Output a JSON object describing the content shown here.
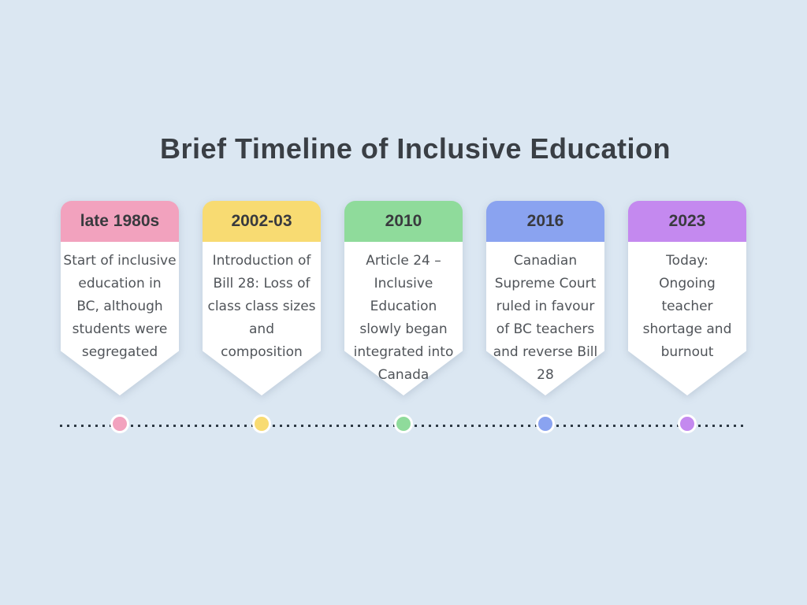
{
  "title": "Brief Timeline of Inclusive Education",
  "colors": {
    "background": "#DBE7F2",
    "card_body": "#FFFFFF",
    "title_text": "#3A3F45",
    "year_text": "#393A3E",
    "body_text": "#505459",
    "dotted_line": "#2D3944",
    "marker_ring": "#FFFFFF"
  },
  "events": [
    {
      "year": "late 1980s",
      "color": "#F2A2BE",
      "description": "Start of inclusive\neducation in\nBC, although\nstudents were\nsegregated"
    },
    {
      "year": "2002-03",
      "color": "#F8DB72",
      "description": "Introduction of\nBill 28: Loss of\nclass class sizes\nand\ncomposition"
    },
    {
      "year": "2010",
      "color": "#8FDB9B",
      "description": "Article 24 –\nInclusive\nEducation\nslowly began\nintegrated into\nCanada"
    },
    {
      "year": "2016",
      "color": "#8AA3F0",
      "description": "Canadian\nSupreme Court\nruled in favour\nof BC teachers\nand reverse Bill\n28"
    },
    {
      "year": "2023",
      "color": "#C489EF",
      "description": "Today:\nOngoing\nteacher\nshortage and\nburnout"
    }
  ]
}
